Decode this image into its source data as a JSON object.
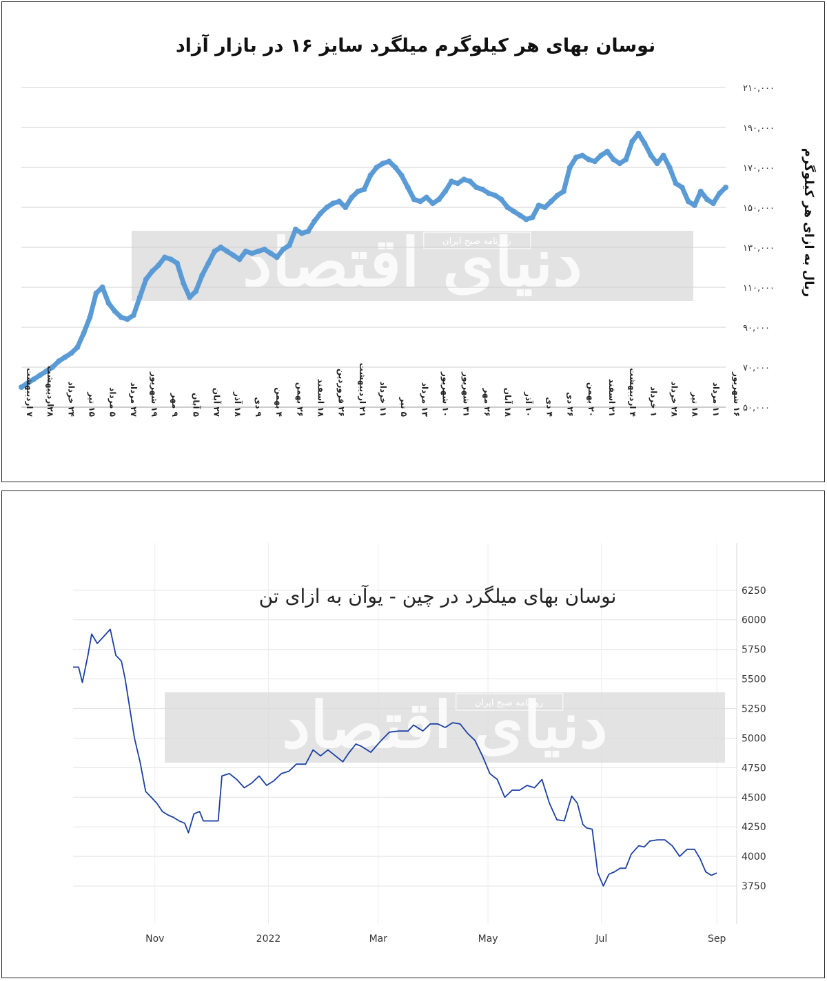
{
  "chart_data": [
    {
      "type": "line",
      "title": "نوسان بهای هر کیلوگرم میلگرد سایز ۱۶ در بازار آزاد",
      "ylabel": "ریال به ازای هر کیلوگرم",
      "xlabel": "",
      "ylim": [
        50000,
        210000
      ],
      "yticks": [
        "۵۰,۰۰۰",
        "۷۰,۰۰۰",
        "۹۰,۰۰۰",
        "۱۱۰,۰۰۰",
        "۱۳۰,۰۰۰",
        "۱۵۰,۰۰۰",
        "۱۷۰,۰۰۰",
        "۱۹۰,۰۰۰",
        "۲۱۰,۰۰۰"
      ],
      "ytick_values": [
        50000,
        70000,
        90000,
        110000,
        130000,
        150000,
        170000,
        190000,
        210000
      ],
      "grid": true,
      "line_color": "#5b9bd5",
      "x_labels": [
        "۷ اردیبهشت",
        "۲۸اردیبهشت",
        "۲۴ خرداد",
        "۱۵ تیر",
        "۵ مرداد",
        "۲۷ مرداد",
        "۱۹ شهریور",
        "۹ مهر",
        "۵ آبان",
        "۲۷ آبان",
        "۱۸ آذر",
        "۹ دی",
        "۴ بهمن",
        "۲۶ بهمن",
        "۱۸ اسفند",
        "۲۶ فروردین",
        "۲۱ اردیبهشت",
        "۱۱ خرداد",
        "۵ تیر",
        "۱۳ مرداد",
        "۱۰ شهریور",
        "۳۱ شهریور",
        "۲۶ مهر",
        "۱۸ آبان",
        "۱۰ آذر",
        "۴ دی",
        "۲۶ دی",
        "۲۰ بهمن",
        "۲۱ اسفند",
        "۴ اردیبهشت",
        "۱ خرداد",
        "۲۸ خرداد",
        "۱۸ تیر",
        "۱۱ مرداد",
        "۱۶ شهریور"
      ],
      "points": [
        [
          0,
          60000
        ],
        [
          1,
          62000
        ],
        [
          2,
          64000
        ],
        [
          3,
          66000
        ],
        [
          4,
          68000
        ],
        [
          5,
          70000
        ],
        [
          6,
          73000
        ],
        [
          7,
          75000
        ],
        [
          8,
          77000
        ],
        [
          9,
          80000
        ],
        [
          10,
          87000
        ],
        [
          11,
          95000
        ],
        [
          12,
          107000
        ],
        [
          13,
          110000
        ],
        [
          14,
          102000
        ],
        [
          15,
          98000
        ],
        [
          16,
          95000
        ],
        [
          17,
          94000
        ],
        [
          18,
          96000
        ],
        [
          19,
          105000
        ],
        [
          20,
          114000
        ],
        [
          21,
          118000
        ],
        [
          22,
          121000
        ],
        [
          23,
          125000
        ],
        [
          24,
          124000
        ],
        [
          25,
          122000
        ],
        [
          26,
          112000
        ],
        [
          27,
          105000
        ],
        [
          28,
          108000
        ],
        [
          29,
          116000
        ],
        [
          30,
          122000
        ],
        [
          31,
          128000
        ],
        [
          32,
          130000
        ],
        [
          33,
          128000
        ],
        [
          34,
          126000
        ],
        [
          35,
          124000
        ],
        [
          36,
          128000
        ],
        [
          37,
          127000
        ],
        [
          38,
          128000
        ],
        [
          39,
          129000
        ],
        [
          40,
          127000
        ],
        [
          41,
          125000
        ],
        [
          42,
          129000
        ],
        [
          43,
          131000
        ],
        [
          44,
          139000
        ],
        [
          45,
          137000
        ],
        [
          46,
          138000
        ],
        [
          47,
          143000
        ],
        [
          48,
          147000
        ],
        [
          49,
          150000
        ],
        [
          50,
          152000
        ],
        [
          51,
          153000
        ],
        [
          52,
          150000
        ],
        [
          53,
          155000
        ],
        [
          54,
          158000
        ],
        [
          55,
          159000
        ],
        [
          56,
          166000
        ],
        [
          57,
          170000
        ],
        [
          58,
          172000
        ],
        [
          59,
          173000
        ],
        [
          60,
          170000
        ],
        [
          61,
          166000
        ],
        [
          62,
          160000
        ],
        [
          63,
          154000
        ],
        [
          64,
          153000
        ],
        [
          65,
          155000
        ],
        [
          66,
          152000
        ],
        [
          67,
          154000
        ],
        [
          68,
          158000
        ],
        [
          69,
          163000
        ],
        [
          70,
          162000
        ],
        [
          71,
          164000
        ],
        [
          72,
          163000
        ],
        [
          73,
          160000
        ],
        [
          74,
          159000
        ],
        [
          75,
          157000
        ],
        [
          76,
          156000
        ],
        [
          77,
          154000
        ],
        [
          78,
          150000
        ],
        [
          79,
          148000
        ],
        [
          80,
          146000
        ],
        [
          81,
          144000
        ],
        [
          82,
          145000
        ],
        [
          83,
          151000
        ],
        [
          84,
          150000
        ],
        [
          85,
          153000
        ],
        [
          86,
          156000
        ],
        [
          87,
          158000
        ],
        [
          88,
          170000
        ],
        [
          89,
          175000
        ],
        [
          90,
          176000
        ],
        [
          91,
          174000
        ],
        [
          92,
          173000
        ],
        [
          93,
          176000
        ],
        [
          94,
          178000
        ],
        [
          95,
          174000
        ],
        [
          96,
          172000
        ],
        [
          97,
          174000
        ],
        [
          98,
          183000
        ],
        [
          99,
          187000
        ],
        [
          100,
          182000
        ],
        [
          101,
          176000
        ],
        [
          102,
          172000
        ],
        [
          103,
          176000
        ],
        [
          104,
          170000
        ],
        [
          105,
          162000
        ],
        [
          106,
          160000
        ],
        [
          107,
          153000
        ],
        [
          108,
          151000
        ],
        [
          109,
          158000
        ],
        [
          110,
          154000
        ],
        [
          111,
          152000
        ],
        [
          112,
          157000
        ],
        [
          113,
          160000
        ]
      ]
    },
    {
      "type": "line",
      "title": "نوسان بهای میلگرد در چین - یوآن به ازای تن",
      "xlabel": "",
      "ylabel": "",
      "ylim": [
        3500,
        6400
      ],
      "yticks": [
        3750,
        4000,
        4250,
        4500,
        4750,
        5000,
        5250,
        5500,
        5750,
        6000,
        6250
      ],
      "grid": true,
      "line_color": "#1a3fa3",
      "x_labels": [
        "Nov",
        "2022",
        "Mar",
        "May",
        "Jul",
        "Sep"
      ],
      "x_label_days": [
        44,
        105,
        164,
        223,
        284,
        346
      ],
      "points": [
        [
          0,
          5600
        ],
        [
          3,
          5600
        ],
        [
          5,
          5470
        ],
        [
          8,
          5700
        ],
        [
          10,
          5880
        ],
        [
          13,
          5800
        ],
        [
          16,
          5850
        ],
        [
          20,
          5920
        ],
        [
          23,
          5700
        ],
        [
          26,
          5650
        ],
        [
          28,
          5500
        ],
        [
          30,
          5300
        ],
        [
          33,
          5000
        ],
        [
          36,
          4800
        ],
        [
          39,
          4550
        ],
        [
          42,
          4500
        ],
        [
          45,
          4450
        ],
        [
          48,
          4380
        ],
        [
          51,
          4350
        ],
        [
          54,
          4330
        ],
        [
          57,
          4300
        ],
        [
          60,
          4280
        ],
        [
          62,
          4200
        ],
        [
          65,
          4360
        ],
        [
          68,
          4380
        ],
        [
          70,
          4300
        ],
        [
          74,
          4300
        ],
        [
          78,
          4300
        ],
        [
          80,
          4680
        ],
        [
          84,
          4700
        ],
        [
          88,
          4650
        ],
        [
          92,
          4580
        ],
        [
          96,
          4620
        ],
        [
          100,
          4680
        ],
        [
          104,
          4600
        ],
        [
          108,
          4640
        ],
        [
          112,
          4700
        ],
        [
          116,
          4720
        ],
        [
          120,
          4780
        ],
        [
          125,
          4780
        ],
        [
          129,
          4900
        ],
        [
          133,
          4850
        ],
        [
          137,
          4900
        ],
        [
          141,
          4850
        ],
        [
          145,
          4800
        ],
        [
          148,
          4870
        ],
        [
          152,
          4950
        ],
        [
          155,
          4930
        ],
        [
          160,
          4880
        ],
        [
          165,
          4970
        ],
        [
          170,
          5050
        ],
        [
          175,
          5060
        ],
        [
          180,
          5060
        ],
        [
          183,
          5110
        ],
        [
          188,
          5060
        ],
        [
          192,
          5120
        ],
        [
          196,
          5120
        ],
        [
          200,
          5090
        ],
        [
          204,
          5130
        ],
        [
          208,
          5120
        ],
        [
          212,
          5040
        ],
        [
          216,
          4980
        ],
        [
          220,
          4850
        ],
        [
          224,
          4700
        ],
        [
          228,
          4650
        ],
        [
          232,
          4500
        ],
        [
          236,
          4560
        ],
        [
          240,
          4560
        ],
        [
          244,
          4600
        ],
        [
          248,
          4580
        ],
        [
          252,
          4650
        ],
        [
          256,
          4450
        ],
        [
          260,
          4310
        ],
        [
          264,
          4300
        ],
        [
          268,
          4510
        ],
        [
          271,
          4450
        ],
        [
          274,
          4270
        ],
        [
          276,
          4240
        ],
        [
          279,
          4230
        ],
        [
          282,
          3860
        ],
        [
          285,
          3750
        ],
        [
          288,
          3850
        ],
        [
          291,
          3870
        ],
        [
          294,
          3900
        ],
        [
          297,
          3900
        ],
        [
          300,
          4020
        ],
        [
          304,
          4090
        ],
        [
          307,
          4080
        ],
        [
          310,
          4130
        ],
        [
          314,
          4140
        ],
        [
          318,
          4140
        ],
        [
          322,
          4090
        ],
        [
          326,
          4000
        ],
        [
          330,
          4060
        ],
        [
          334,
          4060
        ],
        [
          337,
          3980
        ],
        [
          340,
          3870
        ],
        [
          343,
          3840
        ],
        [
          346,
          3860
        ]
      ]
    }
  ],
  "watermark": {
    "brand": "دنیای اقتصاد",
    "subtitle": "روزنامه صبح ایران"
  }
}
